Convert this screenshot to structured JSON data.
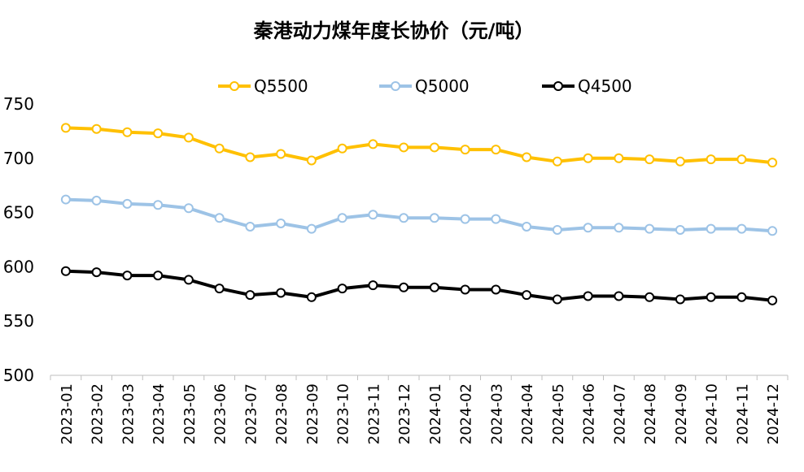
{
  "chart_data": {
    "type": "line",
    "title": "秦港动力煤年度长协价（元/吨）",
    "xlabel": "",
    "ylabel": "",
    "ylim": [
      500,
      750
    ],
    "yticks": [
      "500",
      "550",
      "600",
      "650",
      "700",
      "750"
    ],
    "grid": false,
    "legend_position": "top",
    "categories": [
      "2023-01",
      "2023-02",
      "2023-03",
      "2023-04",
      "2023-05",
      "2023-06",
      "2023-07",
      "2023-08",
      "2023-09",
      "2023-10",
      "2023-11",
      "2023-12",
      "2024-01",
      "2024-02",
      "2024-03",
      "2024-04",
      "2024-05",
      "2024-06",
      "2024-07",
      "2024-08",
      "2024-09",
      "2024-10",
      "2024-11",
      "2024-12"
    ],
    "series": [
      {
        "name": "Q5500",
        "color": "#FFC000",
        "values": [
          728,
          727,
          724,
          723,
          719,
          709,
          701,
          704,
          698,
          709,
          713,
          710,
          710,
          708,
          708,
          701,
          697,
          700,
          700,
          699,
          697,
          699,
          699,
          696
        ]
      },
      {
        "name": "Q5000",
        "color": "#9DC3E6",
        "values": [
          662,
          661,
          658,
          657,
          654,
          645,
          637,
          640,
          635,
          645,
          648,
          645,
          645,
          644,
          644,
          637,
          634,
          636,
          636,
          635,
          634,
          635,
          635,
          633
        ]
      },
      {
        "name": "Q4500",
        "color": "#000000",
        "values": [
          596,
          595,
          592,
          592,
          588,
          580,
          574,
          576,
          572,
          580,
          583,
          581,
          581,
          579,
          579,
          574,
          570,
          573,
          573,
          572,
          570,
          572,
          572,
          569
        ]
      }
    ]
  }
}
